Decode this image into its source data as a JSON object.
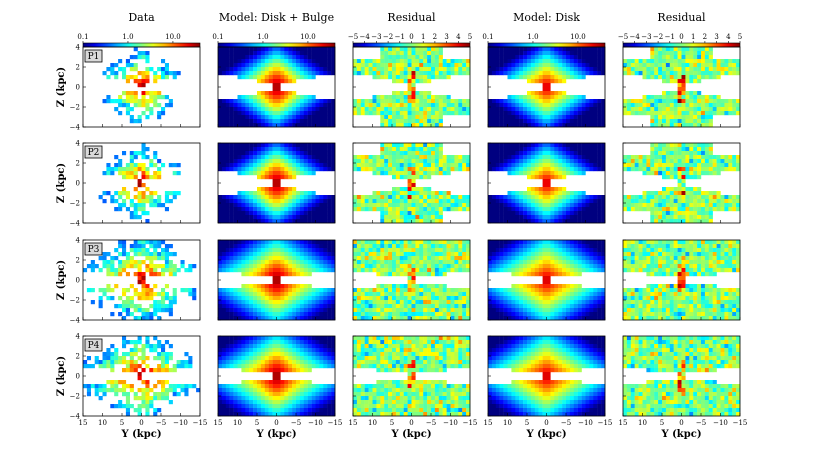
{
  "chart_data": {
    "type": "heatmap",
    "layout": {
      "rows": 4,
      "columns": 5
    },
    "column_titles": [
      "Data",
      "Model: Disk + Bulge",
      "Residual",
      "Model: Disk",
      "Residual"
    ],
    "row_labels": [
      "P1",
      "P2",
      "P3",
      "P4"
    ],
    "xlabel": "Y (kpc)",
    "ylabel": "Z (kpc)",
    "xlim": [
      15,
      -15
    ],
    "ylim": [
      -4,
      4
    ],
    "x_ticks": [
      "15",
      "10",
      "5",
      "0",
      "−5",
      "−10",
      "−15"
    ],
    "x_tick_values": [
      15,
      10,
      5,
      0,
      -5,
      -10,
      -15
    ],
    "y_ticks": [
      "−4",
      "−2",
      "0",
      "2",
      "4"
    ],
    "y_tick_values": [
      -4,
      -2,
      0,
      2,
      4
    ],
    "colorbars": {
      "log": {
        "scale": "log",
        "range": [
          0.1,
          40
        ],
        "ticks": [
          "0.1",
          "1.0",
          "10.0"
        ],
        "tick_values": [
          0.1,
          1.0,
          10.0
        ],
        "colormap": "jet"
      },
      "residual": {
        "scale": "linear",
        "range": [
          -5,
          5
        ],
        "ticks": [
          "−5",
          "−4",
          "−3",
          "−2",
          "−1",
          "0",
          "1",
          "2",
          "3",
          "4",
          "5"
        ],
        "tick_values": [
          -5,
          -4,
          -3,
          -2,
          -1,
          0,
          1,
          2,
          3,
          4,
          5
        ],
        "colormap": "jet"
      }
    },
    "column_colorbars": [
      "log",
      "log",
      "residual",
      "log",
      "residual"
    ]
  }
}
